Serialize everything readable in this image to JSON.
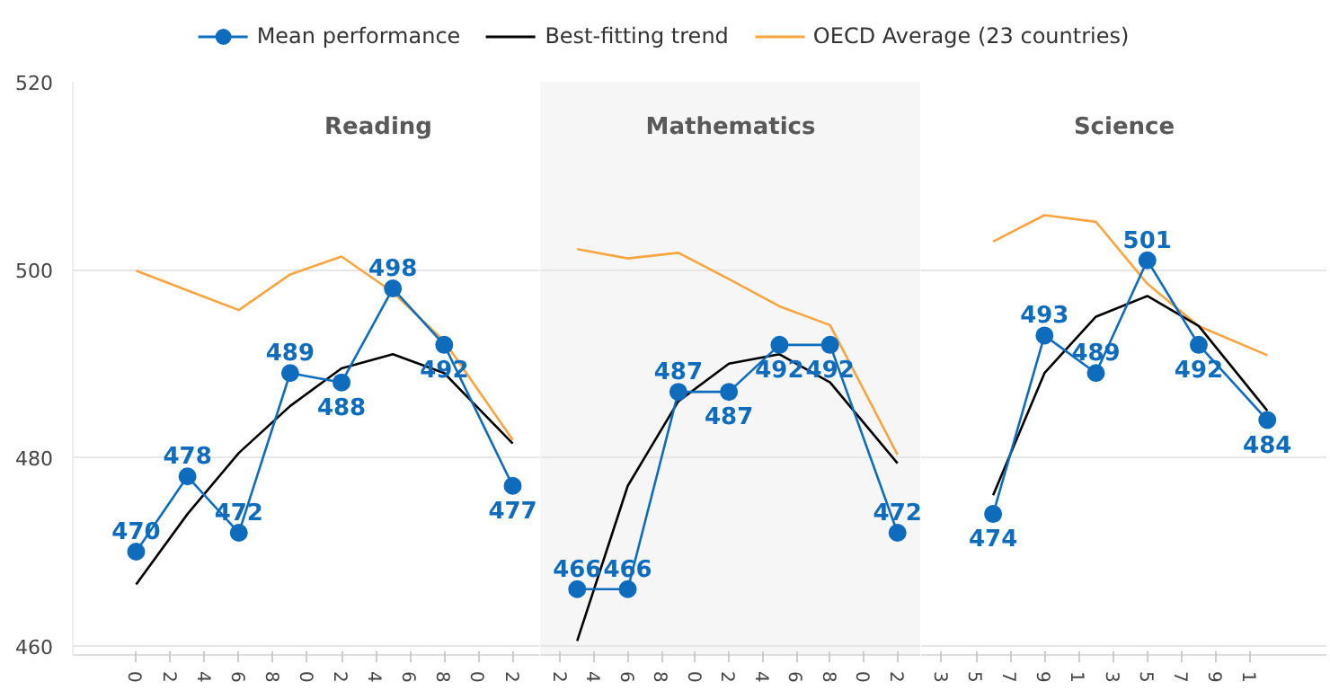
{
  "chart_data": [
    {
      "type": "line",
      "title": "Reading",
      "categories": [
        "0",
        null,
        "2",
        null,
        "4",
        null,
        "6",
        null,
        "8",
        null,
        "0",
        null,
        "2",
        null,
        "4",
        null,
        "6",
        null,
        "8",
        null,
        "0",
        null,
        "2"
      ],
      "ylim": [
        459,
        520
      ],
      "yticks": [
        460,
        480,
        500,
        520
      ],
      "grid": "y",
      "legend": "top",
      "series": [
        {
          "name": "Mean performance",
          "color": "#0f6cbd",
          "marker": "circle",
          "values": [
            470,
            null,
            null,
            478,
            null,
            null,
            472,
            null,
            null,
            489,
            null,
            null,
            488,
            null,
            null,
            498,
            null,
            null,
            492,
            null,
            null,
            null,
            477
          ],
          "value_labels": [
            "470",
            null,
            null,
            "478",
            null,
            null,
            "472",
            null,
            null,
            "489",
            null,
            null,
            "488",
            null,
            null,
            "498",
            null,
            null,
            "492",
            null,
            null,
            null,
            "477"
          ]
        },
        {
          "name": "Best-fitting trend",
          "color": "#000000",
          "marker": "none",
          "values": [
            466.5,
            null,
            null,
            474,
            null,
            null,
            480.5,
            null,
            null,
            485.5,
            null,
            null,
            489.5,
            null,
            null,
            491,
            null,
            null,
            489,
            null,
            null,
            null,
            481.5
          ]
        },
        {
          "name": "OECD Average (23 countries)",
          "color": "#f7a541",
          "marker": "none",
          "values": [
            499.9,
            null,
            null,
            497.8,
            null,
            null,
            495.7,
            null,
            null,
            499.5,
            null,
            null,
            501.4,
            null,
            null,
            497.6,
            null,
            null,
            492.4,
            null,
            null,
            null,
            481.9
          ]
        }
      ]
    },
    {
      "type": "line",
      "title": "Mathematics",
      "categories": [
        "2",
        null,
        "4",
        null,
        "6",
        null,
        "8",
        null,
        "0",
        null,
        "2",
        null,
        "4",
        null,
        "6",
        null,
        "8",
        null,
        "0",
        null,
        "2"
      ],
      "ylim": [
        459,
        520
      ],
      "yticks": [
        460,
        480,
        500,
        520
      ],
      "grid": "y",
      "tick_labels": "x",
      "series": [
        {
          "color": "#0f6cbd",
          "marker": "circle",
          "values": [
            null,
            466,
            null,
            null,
            466,
            null,
            null,
            487,
            null,
            null,
            487,
            null,
            null,
            492,
            null,
            null,
            492,
            null,
            null,
            null,
            472
          ],
          "value_labels": [
            null,
            "466",
            null,
            null,
            "466",
            null,
            null,
            "487",
            null,
            null,
            "487",
            null,
            null,
            "492",
            null,
            null,
            "492",
            null,
            null,
            null,
            "472"
          ]
        },
        {
          "color": "#000000",
          "marker": "none",
          "values": [
            null,
            460.5,
            null,
            null,
            477,
            null,
            null,
            486,
            null,
            null,
            490,
            null,
            null,
            491,
            null,
            null,
            488,
            null,
            null,
            null,
            479.4
          ]
        },
        {
          "color": "#f7a541",
          "marker": "none",
          "values": [
            null,
            502.2,
            null,
            null,
            501.2,
            null,
            null,
            501.8,
            null,
            null,
            499,
            null,
            null,
            496.1,
            null,
            null,
            494.1,
            null,
            null,
            null,
            480.3
          ]
        }
      ]
    },
    {
      "type": "line",
      "title": "Science",
      "categories": [
        "3",
        null,
        "5",
        null,
        "7",
        null,
        "9",
        null,
        "1",
        null,
        "3",
        null,
        "5",
        null,
        "7",
        null,
        "9",
        null,
        "1",
        null
      ],
      "ylim": [
        459,
        520
      ],
      "yticks": [
        460,
        480,
        500,
        520
      ],
      "grid": "y",
      "tick_labels": "x",
      "series": [
        {
          "color": "#0f6cbd",
          "marker": "circle",
          "values": [
            null,
            null,
            null,
            474,
            null,
            null,
            493,
            null,
            null,
            489,
            null,
            null,
            501,
            null,
            null,
            492,
            null,
            null,
            null,
            484
          ],
          "value_labels": [
            null,
            null,
            null,
            "474",
            null,
            null,
            "493",
            null,
            null,
            "489",
            null,
            null,
            "501",
            null,
            null,
            "492",
            null,
            null,
            null,
            "484"
          ]
        },
        {
          "color": "#000000",
          "marker": "none",
          "values": [
            null,
            null,
            null,
            476,
            null,
            null,
            489,
            null,
            null,
            495,
            null,
            null,
            497.2,
            null,
            null,
            494,
            null,
            null,
            null,
            485
          ]
        },
        {
          "color": "#f7a541",
          "marker": "none",
          "values": [
            null,
            null,
            null,
            503,
            null,
            null,
            505.8,
            null,
            null,
            505.1,
            null,
            null,
            498.5,
            null,
            null,
            494,
            null,
            null,
            null,
            490.9
          ]
        }
      ]
    }
  ]
}
